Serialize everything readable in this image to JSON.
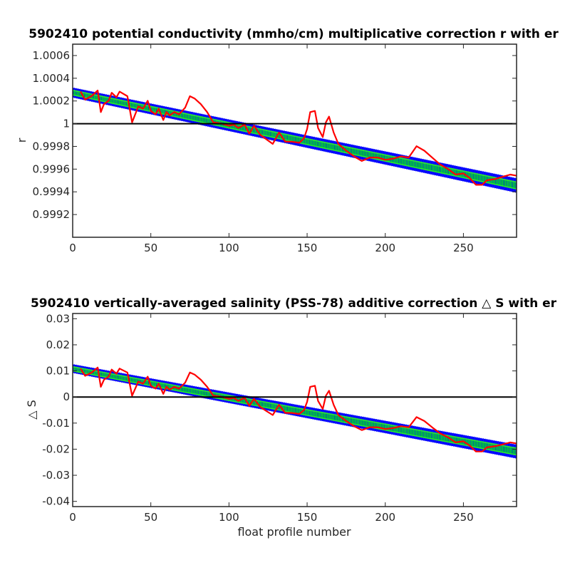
{
  "chart_data": [
    {
      "type": "line",
      "title": "5902410 potential conductivity (mmho/cm) multiplicative correction r with er",
      "xlabel": "",
      "ylabel": "r",
      "xlim": [
        0,
        284
      ],
      "ylim": [
        0.999,
        1.0007
      ],
      "xticks": [
        0,
        50,
        100,
        150,
        200,
        250
      ],
      "xtick_labels": [
        "0",
        "50",
        "100",
        "150",
        "200",
        "250"
      ],
      "yticks": [
        0.9992,
        0.9994,
        0.9996,
        0.9998,
        1.0,
        1.0002,
        1.0004,
        1.0006
      ],
      "ytick_labels": [
        "0.9992",
        "0.9994",
        "0.9996",
        "0.9998",
        "1",
        "1.0002",
        "1.0004",
        "1.0006"
      ],
      "reference_line": 1.0,
      "series": [
        {
          "style": "error-band",
          "color": "#0000ff",
          "x": [
            0,
            284
          ],
          "upper": [
            1.000314,
            0.999516
          ],
          "lower": [
            1.000234,
            0.999396
          ]
        },
        {
          "style": "band-markers",
          "color": "#00ff00",
          "x": [
            0,
            284
          ],
          "upper": [
            1.000294,
            0.999486
          ],
          "lower": [
            1.000254,
            0.999426
          ]
        },
        {
          "style": "line",
          "color": "#ff0000",
          "x": [
            5,
            8,
            12,
            16,
            18,
            20,
            23,
            25,
            28,
            30,
            35,
            38,
            42,
            45,
            48,
            50,
            53,
            55,
            58,
            60,
            62,
            65,
            68,
            72,
            75,
            78,
            82,
            86,
            90,
            95,
            100,
            103,
            106,
            110,
            113,
            116,
            120,
            124,
            128,
            132,
            136,
            140,
            145,
            148,
            150,
            152,
            155,
            157,
            160,
            162,
            164,
            167,
            170,
            175,
            180,
            185,
            190,
            195,
            200,
            205,
            210,
            215,
            220,
            225,
            230,
            235,
            240,
            245,
            250,
            254,
            258,
            262,
            265,
            270,
            275,
            280,
            284
          ],
          "y": [
            1.000282,
            1.000212,
            1.000242,
            1.000292,
            1.000102,
            1.000172,
            1.000202,
            1.000272,
            1.000232,
            1.000282,
            1.000242,
            1.000012,
            1.000152,
            1.000132,
            1.000202,
            1.000112,
            1.000082,
            1.000132,
            1.000032,
            1.000102,
            1.000072,
            1.000102,
            1.000082,
            1.000142,
            1.000242,
            1.000222,
            1.000172,
            1.000102,
            1.000012,
            1.000002,
            0.999982,
            0.999992,
            0.999962,
            0.999992,
            0.999912,
            0.999982,
            0.999902,
            0.999862,
            0.999822,
            0.999922,
            0.999842,
            0.999842,
            0.999832,
            0.999872,
            0.999952,
            1.000102,
            1.000112,
            0.999962,
            0.999882,
            1.000012,
            1.000062,
            0.999922,
            0.999822,
            0.999762,
            0.999712,
            0.999672,
            0.999702,
            0.999702,
            0.999682,
            0.999692,
            0.999712,
            0.999702,
            0.999802,
            0.999762,
            0.999702,
            0.999642,
            0.999602,
            0.999552,
            0.999562,
            0.999522,
            0.999462,
            0.999462,
            0.999502,
            0.999512,
            0.999532,
            0.999552,
            0.999542
          ]
        }
      ]
    },
    {
      "type": "line",
      "title": "5902410 vertically-averaged salinity (PSS-78) additive correction △ S with er",
      "xlabel": "float profile number",
      "ylabel": "△ S",
      "xlim": [
        0,
        284
      ],
      "ylim": [
        -0.042,
        0.032
      ],
      "xticks": [
        0,
        50,
        100,
        150,
        200,
        250
      ],
      "xtick_labels": [
        "0",
        "50",
        "100",
        "150",
        "200",
        "250"
      ],
      "yticks": [
        -0.04,
        -0.03,
        -0.02,
        -0.01,
        0,
        0.01,
        0.02,
        0.03
      ],
      "ytick_labels": [
        "-0.04",
        "-0.03",
        "-0.02",
        "-0.01",
        "0",
        "0.01",
        "0.02",
        "0.03"
      ],
      "reference_line": 0,
      "series": [
        {
          "style": "error-band",
          "color": "#0000ff",
          "x": [
            0,
            284
          ],
          "upper": [
            0.0124,
            -0.0184
          ],
          "lower": [
            0.0094,
            -0.0234
          ]
        },
        {
          "style": "band-markers",
          "color": "#00ff00",
          "x": [
            0,
            284
          ],
          "upper": [
            0.0116,
            -0.0196
          ],
          "lower": [
            0.01,
            -0.0222
          ]
        },
        {
          "style": "line",
          "color": "#ff0000",
          "x": [
            5,
            8,
            12,
            16,
            18,
            20,
            23,
            25,
            28,
            30,
            35,
            38,
            42,
            45,
            48,
            50,
            53,
            55,
            58,
            60,
            62,
            65,
            68,
            72,
            75,
            78,
            82,
            86,
            90,
            95,
            100,
            103,
            106,
            110,
            113,
            116,
            120,
            124,
            128,
            132,
            136,
            140,
            145,
            148,
            150,
            152,
            155,
            157,
            160,
            162,
            164,
            167,
            170,
            175,
            180,
            185,
            190,
            195,
            200,
            205,
            210,
            215,
            220,
            225,
            230,
            235,
            240,
            245,
            250,
            254,
            258,
            262,
            265,
            270,
            275,
            280,
            284
          ],
          "y": [
            0.0109,
            0.0081,
            0.0093,
            0.0113,
            0.0039,
            0.0066,
            0.0078,
            0.0105,
            0.0089,
            0.0109,
            0.0094,
            0.0005,
            0.0059,
            0.0051,
            0.0078,
            0.0043,
            0.0032,
            0.0051,
            0.0012,
            0.0039,
            0.0028,
            0.0039,
            0.0032,
            0.0055,
            0.0094,
            0.0086,
            0.0066,
            0.0039,
            0.0005,
            0.0001,
            -0.0007,
            -0.0003,
            -0.0015,
            -0.0003,
            -0.0034,
            -0.0007,
            -0.0038,
            -0.0054,
            -0.0069,
            -0.003,
            -0.0061,
            -0.0061,
            -0.0065,
            -0.005,
            -0.0019,
            0.0039,
            0.0043,
            -0.0015,
            -0.0046,
            0.0005,
            0.0024,
            -0.003,
            -0.0069,
            -0.0092,
            -0.0112,
            -0.0127,
            -0.0116,
            -0.0116,
            -0.0123,
            -0.0119,
            -0.0112,
            -0.0116,
            -0.0077,
            -0.0092,
            -0.0116,
            -0.0139,
            -0.0154,
            -0.0174,
            -0.017,
            -0.0186,
            -0.0209,
            -0.0209,
            -0.0193,
            -0.0189,
            -0.0182,
            -0.0174,
            -0.0178
          ]
        }
      ]
    }
  ]
}
